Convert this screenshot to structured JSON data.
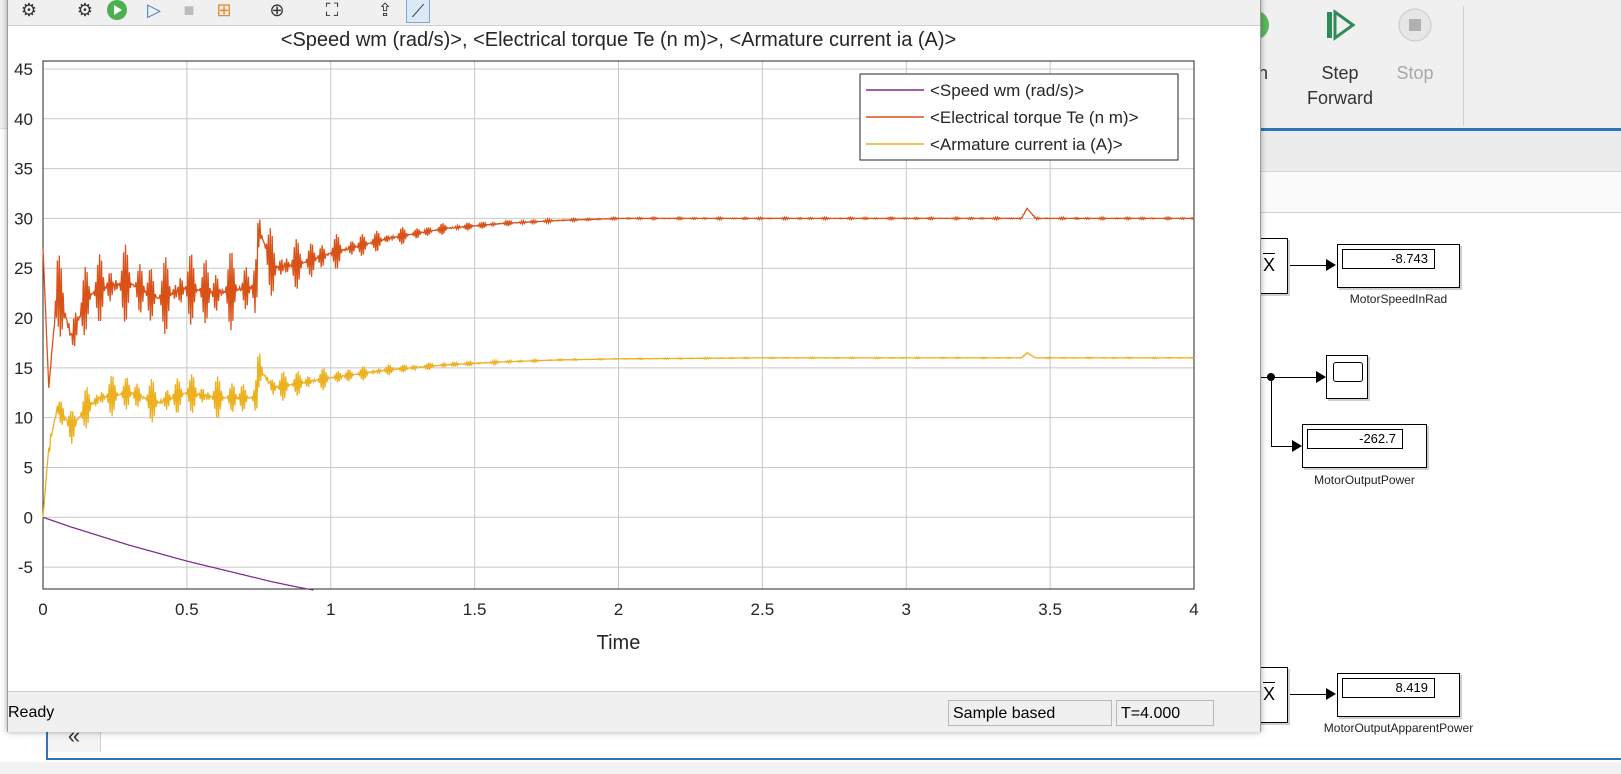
{
  "toolstrip": {
    "run_label": "n",
    "step_forward_label": "Step",
    "step_forward_label2": "Forward",
    "stop_label": "Stop"
  },
  "canvas": {
    "collapse_label": "«",
    "blocks": {
      "motor_speed_value": "-8.743",
      "motor_speed_label": "MotorSpeedInRad",
      "motor_power_value": "-262.7",
      "motor_power_label": "MotorOutputPower",
      "apparent_power_value": "8.419",
      "apparent_power_label": "MotorOutputApparentPower",
      "abs_symbol": "X"
    }
  },
  "scope": {
    "toolbar_icons": [
      "settings-icon",
      "parameters-icon",
      "run-icon",
      "step-icon",
      "stop-icon",
      "highlight-icon",
      "zoom-icon",
      "fit-icon",
      "autoscale-icon",
      "measure-icon"
    ],
    "status": {
      "left": "Ready",
      "mode": "Sample based",
      "time": "T=4.000"
    }
  },
  "chart_data": {
    "type": "line",
    "title": "<Speed wm (rad/s)>, <Electrical torque Te (n m)>, <Armature current ia (A)>",
    "xlabel": "Time",
    "ylabel": "",
    "xlim": [
      0,
      4
    ],
    "ylim": [
      -7.2,
      45.8
    ],
    "xticks": [
      "0",
      "0.5",
      "1",
      "1.5",
      "2",
      "2.5",
      "3",
      "3.5",
      "4"
    ],
    "yticks": [
      "-5",
      "0",
      "5",
      "10",
      "15",
      "20",
      "25",
      "30",
      "35",
      "40",
      "45"
    ],
    "grid": true,
    "legend_position": "top-right",
    "series": [
      {
        "name": "<Speed wm (rad/s)>",
        "color": "#7e2f8e",
        "x": [
          0,
          0.1,
          0.2,
          0.3,
          0.4,
          0.5,
          0.6,
          0.7,
          0.8,
          0.9,
          0.94
        ],
        "y": [
          0,
          -1.0,
          -1.9,
          -2.8,
          -3.6,
          -4.4,
          -5.1,
          -5.8,
          -6.5,
          -7.1,
          -7.3
        ]
      },
      {
        "name": "<Electrical torque Te (n m)>",
        "color": "#d95319",
        "x": [
          0,
          0.02,
          0.05,
          0.1,
          0.15,
          0.2,
          0.3,
          0.4,
          0.5,
          0.6,
          0.7,
          0.74,
          0.75,
          0.8,
          0.9,
          1.0,
          1.2,
          1.4,
          1.6,
          1.8,
          2.0,
          2.5,
          3.0,
          3.4,
          3.42,
          3.45,
          3.5,
          4.0
        ],
        "y": [
          27,
          13,
          23,
          18,
          22,
          23,
          23.5,
          22,
          23,
          22.5,
          23,
          23,
          29,
          25,
          25.5,
          26.5,
          28,
          29,
          29.5,
          29.8,
          30,
          30,
          30,
          30,
          31,
          30,
          30,
          30
        ]
      },
      {
        "name": "<Armature current ia (A)>",
        "color": "#edb120",
        "x": [
          0,
          0.02,
          0.05,
          0.1,
          0.15,
          0.2,
          0.3,
          0.4,
          0.5,
          0.6,
          0.7,
          0.74,
          0.75,
          0.8,
          0.9,
          1.0,
          1.2,
          1.4,
          1.6,
          1.8,
          2.0,
          2.5,
          3.0,
          3.4,
          3.42,
          3.45,
          3.5,
          4.0
        ],
        "y": [
          0,
          7,
          11,
          9,
          11,
          12,
          12.5,
          11.5,
          12.5,
          12,
          12,
          12,
          15,
          13,
          13.5,
          14,
          14.8,
          15.3,
          15.6,
          15.8,
          15.9,
          16,
          16,
          16,
          16.5,
          16,
          16,
          16
        ]
      }
    ]
  }
}
